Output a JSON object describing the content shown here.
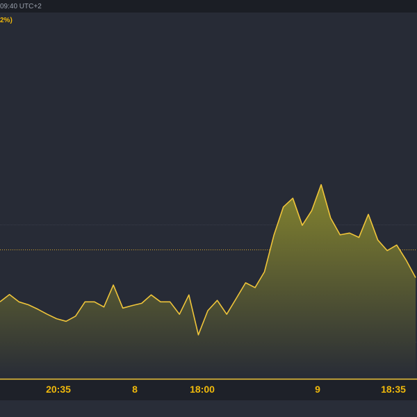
{
  "header": {
    "time_text": "09:40 UTC+2",
    "change_label": "2%)"
  },
  "colors": {
    "background": "#272b36",
    "line": "#f0c53a",
    "fill_top": "#8a8a2e",
    "fill_bottom": "#272b36",
    "gridline": "#3b3f4b",
    "reference_line": "#d8a72c",
    "axis_text": "#f0b90b"
  },
  "chart_data": {
    "type": "area",
    "title": "",
    "xlabel": "",
    "ylabel": "",
    "x_tick_labels": [
      "20:35",
      "8",
      "18:00",
      "9",
      "18:35"
    ],
    "ylim": [
      0,
      100
    ],
    "grid": "horizontal dashed",
    "reference_value": 35.2,
    "series": [
      {
        "values": [
          21,
          23,
          21,
          20.2,
          19,
          17.6,
          16.4,
          15.7,
          17.1,
          21,
          21,
          19.6,
          25.6,
          19.3,
          20,
          20.6,
          22.9,
          21,
          21,
          17.6,
          22.9,
          12,
          18.6,
          21.4,
          17.6,
          21.9,
          26.2,
          24.9,
          29.2,
          39.2,
          46.9,
          49.3,
          41.9,
          45.9,
          53,
          43.9,
          39.3,
          39.8,
          38.6,
          44.9,
          37.9,
          35,
          36.5,
          32.4,
          27.6
        ]
      }
    ]
  }
}
